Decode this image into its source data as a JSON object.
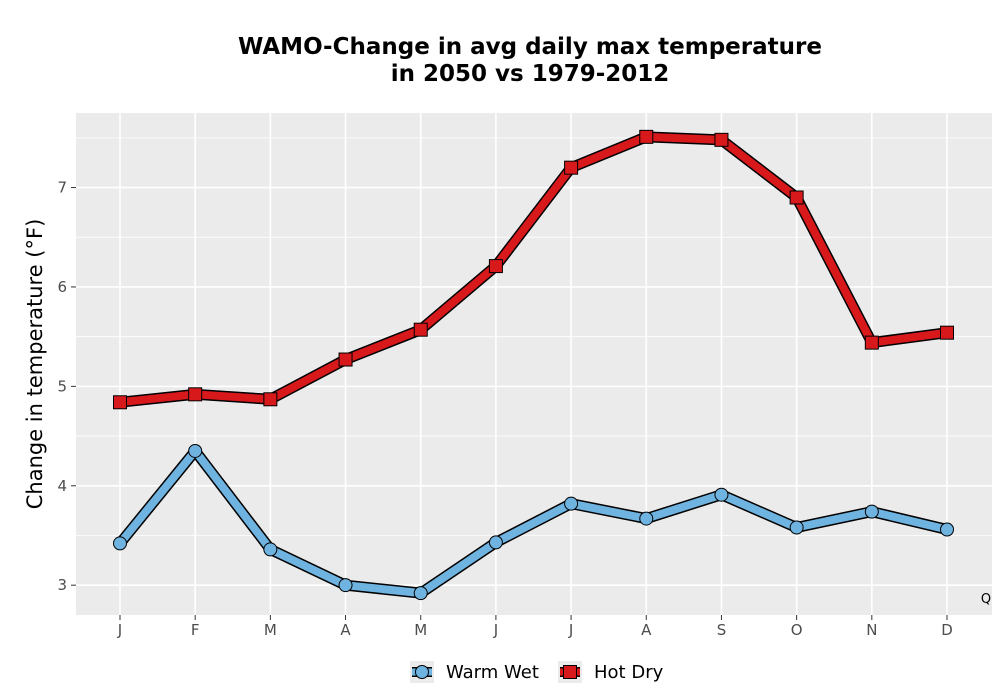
{
  "chart_data": {
    "type": "line",
    "title_line1": "WAMO-Change in avg daily max temperature",
    "title_line2": "in 2050 vs 1979-2012",
    "xlabel": "",
    "ylabel": "Change in temperature (°F)",
    "categories": [
      "J",
      "F",
      "M",
      "A",
      "M",
      "J",
      "J",
      "A",
      "S",
      "O",
      "N",
      "D"
    ],
    "ylim": [
      2.7,
      7.75
    ],
    "yticks": [
      3,
      4,
      5,
      6,
      7
    ],
    "grid": true,
    "legend_position": "bottom",
    "corner_note": "Q",
    "series": [
      {
        "name": "Warm Wet",
        "marker": "circle",
        "color": "#6fb3e0",
        "values": [
          3.42,
          4.35,
          3.36,
          3.0,
          2.92,
          3.43,
          3.82,
          3.67,
          3.91,
          3.58,
          3.74,
          3.56
        ]
      },
      {
        "name": "Hot Dry",
        "marker": "square",
        "color": "#d7191c",
        "values": [
          4.84,
          4.92,
          4.87,
          5.27,
          5.57,
          6.21,
          7.2,
          7.51,
          7.48,
          6.9,
          5.44,
          5.54
        ]
      }
    ]
  }
}
